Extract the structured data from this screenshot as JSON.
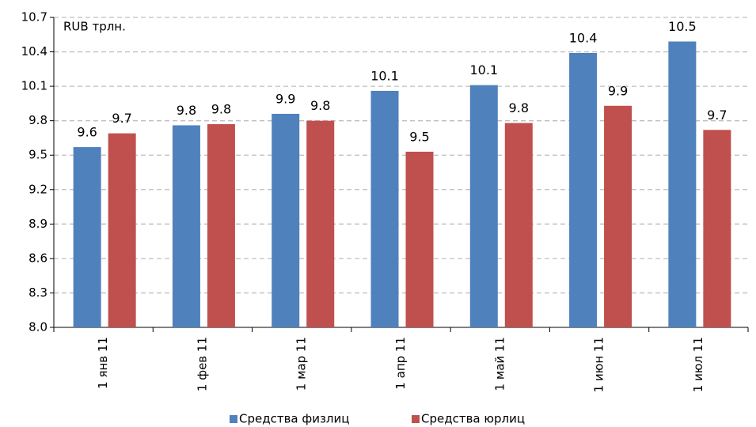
{
  "chart_data": {
    "type": "bar",
    "annotation": "RUB трлн.",
    "categories": [
      "1 янв 11",
      "1 фев 11",
      "1 мар 11",
      "1 апр 11",
      "1 май 11",
      "1 июн 11",
      "1 июл 11"
    ],
    "series": [
      {
        "name": "Средства физлиц",
        "color": "#4f81bd",
        "values": [
          9.57,
          9.76,
          9.86,
          10.06,
          10.11,
          10.39,
          10.49
        ],
        "value_labels": [
          "9.6",
          "9.8",
          "9.9",
          "10.1",
          "10.1",
          "10.4",
          "10.5"
        ]
      },
      {
        "name": "Средства юрлиц",
        "color": "#c0504d",
        "values": [
          9.69,
          9.77,
          9.8,
          9.53,
          9.78,
          9.93,
          9.72
        ],
        "value_labels": [
          "9.7",
          "9.8",
          "9.8",
          "9.5",
          "9.8",
          "9.9",
          "9.7"
        ]
      }
    ],
    "ylim": [
      8,
      10.7
    ],
    "yticks": [
      {
        "value": 8,
        "label": "8.0"
      },
      8.3,
      8.6,
      8.9,
      9.2,
      9.5,
      9.8,
      10.1,
      10.4,
      10.7
    ],
    "grid": true,
    "legend": "bottom"
  }
}
